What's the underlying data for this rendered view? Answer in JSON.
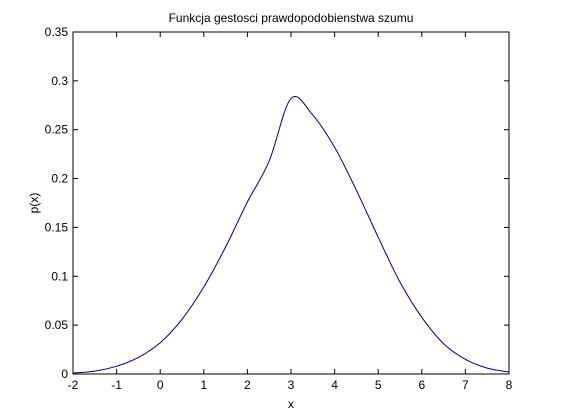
{
  "chart_data": {
    "type": "line",
    "title": "Funkcja gestosci prawdopodobienstwa szumu",
    "xlabel": "x",
    "ylabel": "p(x)",
    "xlim": [
      -2,
      8
    ],
    "ylim": [
      0,
      0.35
    ],
    "grid": false,
    "legend": "none",
    "x_ticks": [
      "-2",
      "-1",
      "0",
      "1",
      "2",
      "3",
      "4",
      "5",
      "6",
      "7",
      "8"
    ],
    "y_ticks": [
      "0",
      "0.05",
      "0.1",
      "0.15",
      "0.2",
      "0.25",
      "0.3",
      "0.35"
    ],
    "line_color": "#00007f",
    "series": [
      {
        "x": [
          -2,
          -1.5,
          -1,
          -0.5,
          0,
          0.5,
          1,
          1.5,
          2,
          2.5,
          3,
          3.5,
          4,
          4.5,
          5,
          5.5,
          6,
          6.5,
          7,
          7.5,
          8
        ],
        "values": [
          0.001,
          0.003,
          0.008,
          0.017,
          0.032,
          0.056,
          0.089,
          0.13,
          0.176,
          0.218,
          0.282,
          0.265,
          0.232,
          0.188,
          0.14,
          0.094,
          0.058,
          0.031,
          0.015,
          0.006,
          0.002
        ]
      }
    ]
  }
}
